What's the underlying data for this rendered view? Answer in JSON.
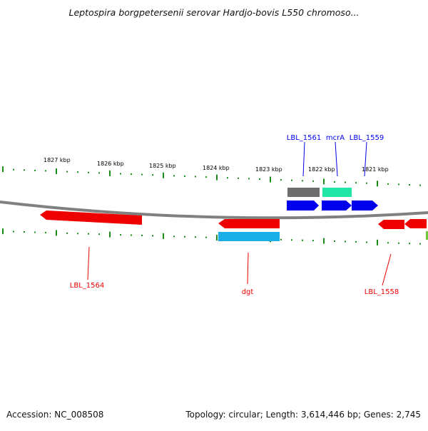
{
  "title": "Leptospira borgpetersenii serovar Hardjo-bovis L550 chromoso...",
  "footer": {
    "accession": "Accession: NC_008508",
    "summary": "Topology: circular; Length: 3,614,446 bp; Genes: 2,745"
  },
  "scale": {
    "labels": [
      "1827 kbp",
      "1826 kbp",
      "1825 kbp",
      "1824 kbp",
      "1823 kbp",
      "1822 kbp",
      "1821 kbp"
    ]
  },
  "forward_genes": [
    {
      "label": "LBL_1561",
      "color": "#0000ee"
    },
    {
      "label": "mcrA",
      "color": "#0000ee"
    },
    {
      "label": "LBL_1559",
      "color": "#0000ee"
    }
  ],
  "reverse_genes": [
    {
      "label": "LBL_1564",
      "color": "#ee0000"
    },
    {
      "label": "dgt",
      "color": "#ee0000"
    },
    {
      "label": "LBL_1558",
      "color": "#ee0000"
    }
  ],
  "colors": {
    "tick": "#1a8c1a",
    "backbone": "#808080",
    "forward_cds": "#0000ee",
    "reverse_cds": "#ee0000",
    "gray_feature": "#6e6e6e",
    "teal_feature": "#22e6a6",
    "cyan_feature": "#1aaee8"
  }
}
